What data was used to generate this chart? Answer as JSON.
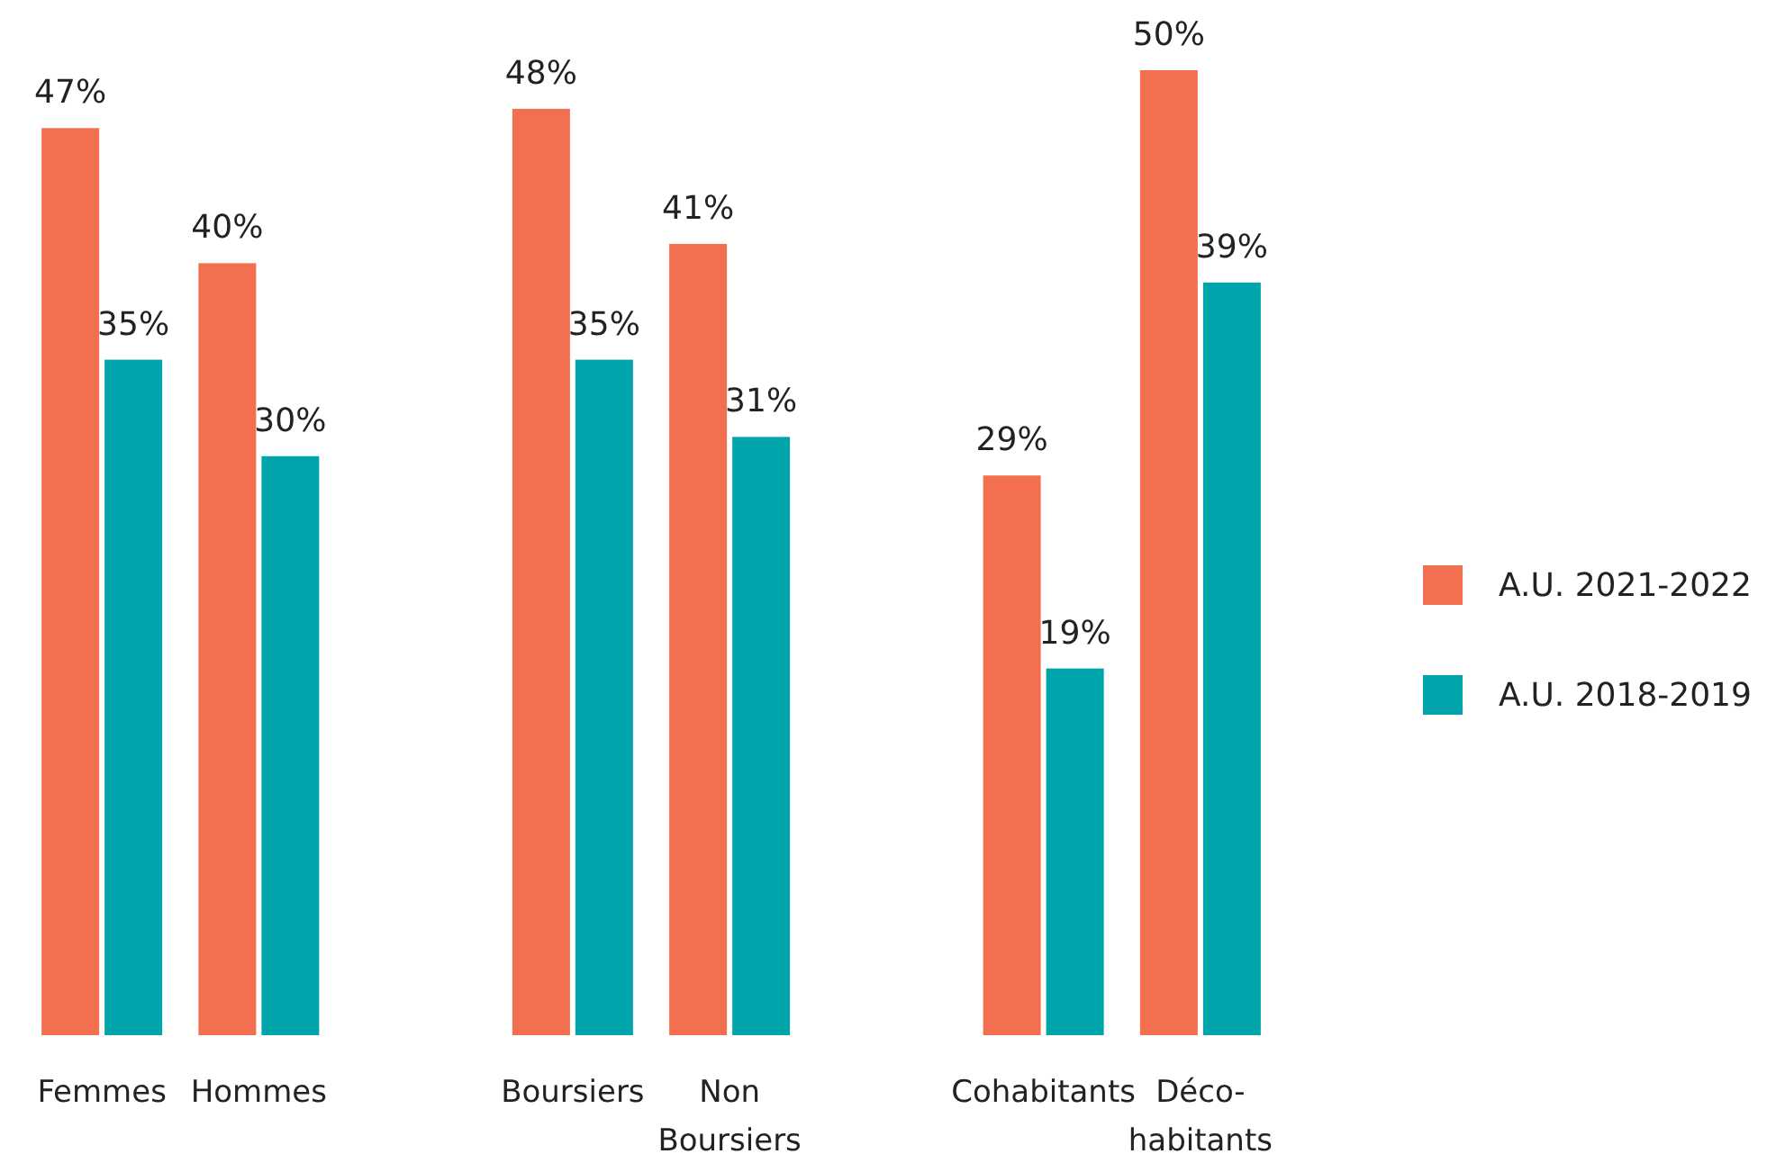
{
  "chart_data": {
    "type": "bar",
    "categories": [
      "Femmes",
      "Hommes",
      null,
      "Boursiers",
      "Non Boursiers",
      null,
      "Cohabitants",
      "Déco-habitants"
    ],
    "series": [
      {
        "name": "A.U. 2021-2022",
        "color": "#f26f4f",
        "values": [
          47,
          40,
          null,
          48,
          41,
          null,
          29,
          50
        ],
        "value_labels": [
          "47%",
          "40%",
          null,
          "48%",
          "41%",
          null,
          "29%",
          "50%"
        ]
      },
      {
        "name": "A.U. 2018-2019",
        "color": "#00a5ab",
        "values": [
          35,
          30,
          null,
          35,
          31,
          null,
          19,
          39
        ],
        "value_labels": [
          "35%",
          "30%",
          null,
          "35%",
          "31%",
          null,
          "19%",
          "39%"
        ]
      }
    ],
    "legend": "right"
  }
}
